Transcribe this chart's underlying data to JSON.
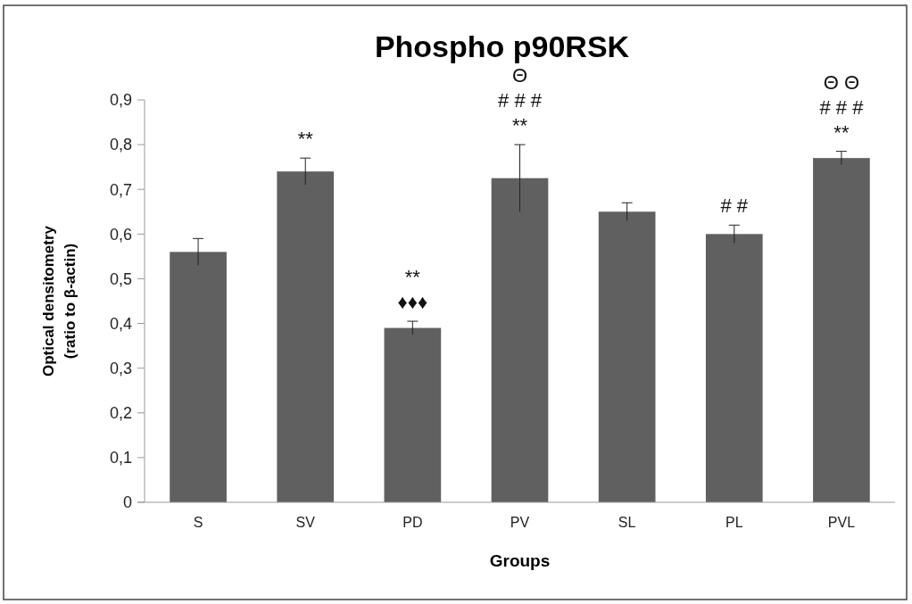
{
  "chart_data": {
    "type": "bar",
    "title": "Phospho p90RSK",
    "xlabel": "Groups",
    "ylabel": "Optical densitometry (ratio to β-actin)",
    "categories": [
      "S",
      "SV",
      "PD",
      "PV",
      "SL",
      "PL",
      "PVL"
    ],
    "values": [
      0.56,
      0.74,
      0.39,
      0.725,
      0.65,
      0.6,
      0.77
    ],
    "errors": [
      0.03,
      0.03,
      0.015,
      0.075,
      0.02,
      0.02,
      0.015
    ],
    "color": "#606060",
    "ylim": [
      0,
      0.9
    ],
    "yticks": [
      0,
      {
        "value": 0.1,
        "label": "0,1"
      },
      {
        "value": 0.2,
        "label": "0,2"
      },
      {
        "value": 0.3,
        "label": "0,3"
      },
      {
        "value": 0.4,
        "label": "0,4"
      },
      {
        "value": 0.5,
        "label": "0,5"
      },
      {
        "value": 0.6,
        "label": "0,6"
      },
      {
        "value": 0.7,
        "label": "0,7"
      },
      {
        "value": 0.8,
        "label": "0,8"
      },
      {
        "value": 0.9,
        "label": "0,9"
      }
    ],
    "grid": false,
    "annotations": [
      {
        "text": "**",
        "x": "SV",
        "y": 0.74
      },
      {
        "text": "♦♦♦",
        "x": "PD",
        "y": 0.39
      },
      {
        "text": "**",
        "x": "PD",
        "y": 0.39
      },
      {
        "text": "**",
        "x": "PV",
        "y": 0.725
      },
      "# # #",
      "Θ",
      {
        "text": "# #",
        "x": "PL",
        "y": 0.6
      },
      {
        "text": "**",
        "x": "PVL",
        "y": 0.77
      },
      "# # #",
      "Θ Θ"
    ]
  }
}
